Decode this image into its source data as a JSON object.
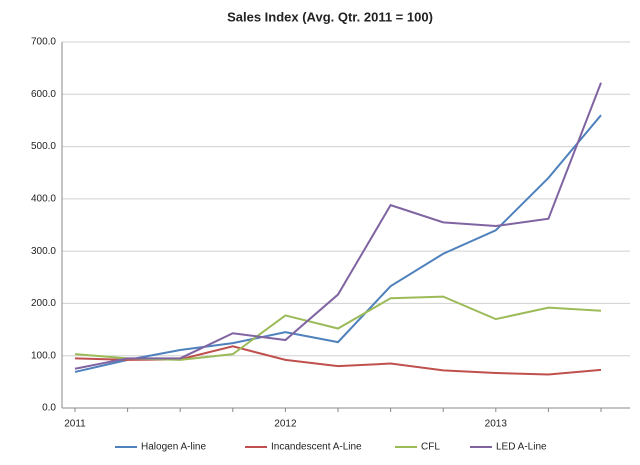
{
  "chart_data": {
    "type": "line",
    "title": "Sales Index (Avg. Qtr. 2011 = 100)",
    "categories": [
      "2011",
      null,
      null,
      null,
      "2012",
      null,
      null,
      null,
      "2013",
      null,
      null
    ],
    "series": [
      {
        "name": "Halogen A-line",
        "color": "#4f81bd",
        "values": [
          69,
          92,
          111,
          124,
          145,
          126,
          233,
          295,
          340,
          440,
          560
        ]
      },
      {
        "name": "Incandescent A-Line",
        "color": "#c0504d",
        "values": [
          95,
          92,
          93,
          118,
          92,
          80,
          85,
          72,
          67,
          64,
          73
        ]
      },
      {
        "name": "CFL",
        "color": "#9bbb59",
        "values": [
          103,
          95,
          92,
          103,
          177,
          152,
          210,
          213,
          170,
          192,
          186
        ]
      },
      {
        "name": "LED A-Line",
        "color": "#8064a2",
        "values": [
          75,
          95,
          95,
          143,
          130,
          217,
          388,
          355,
          348,
          362,
          622
        ]
      }
    ],
    "ylim": [
      0,
      700
    ],
    "yticks": [
      {
        "value": 0,
        "label": "0.0"
      },
      {
        "value": 100,
        "label": "100.0"
      },
      {
        "value": 200,
        "label": "200.0"
      },
      {
        "value": 300,
        "label": "300.0"
      },
      {
        "value": 400,
        "label": "400.0"
      },
      {
        "value": 500,
        "label": "500.0"
      },
      {
        "value": 600,
        "label": "600.0"
      },
      {
        "value": 700,
        "label": "700.0"
      }
    ],
    "grid": true
  }
}
